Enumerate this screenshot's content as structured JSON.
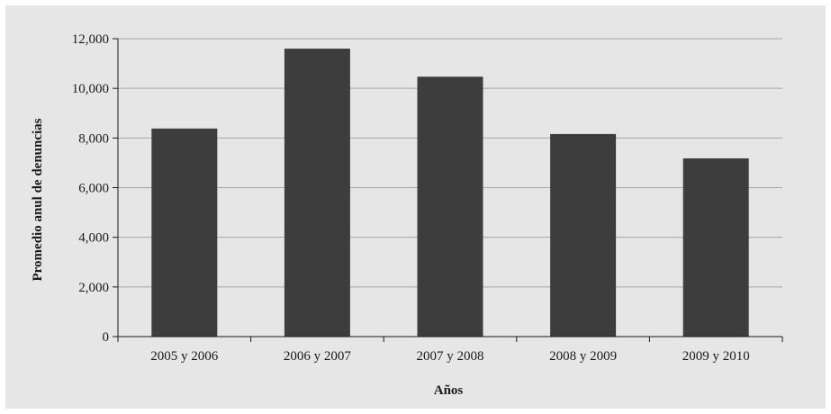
{
  "chart_data": {
    "type": "bar",
    "categories": [
      "2005 y 2006",
      "2006 y 2007",
      "2007 y 2008",
      "2008 y 2009",
      "2009 y 2010"
    ],
    "values": [
      8380,
      11600,
      10470,
      8160,
      7180
    ],
    "title": "",
    "xlabel": "Años",
    "ylabel": "Promedio anul de denuncias",
    "ylim": [
      0,
      12000
    ],
    "yticks": [
      "0",
      "2,000",
      "4,000",
      "6,000",
      "8,000",
      "10,000",
      "12,000"
    ],
    "grid": true,
    "legend": "none",
    "colors": {
      "bar": "#3d3d3d",
      "background": "#e6e6e6",
      "grid": "#a6a6a6",
      "axis": "#1a1a1a"
    }
  }
}
